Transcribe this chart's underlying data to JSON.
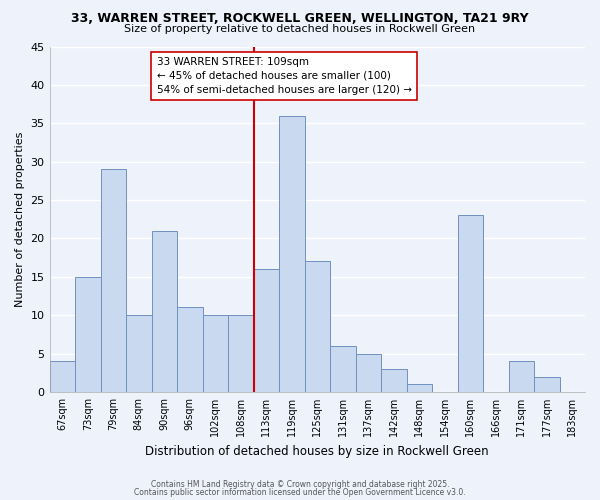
{
  "title": "33, WARREN STREET, ROCKWELL GREEN, WELLINGTON, TA21 9RY",
  "subtitle": "Size of property relative to detached houses in Rockwell Green",
  "xlabel": "Distribution of detached houses by size in Rockwell Green",
  "ylabel": "Number of detached properties",
  "bins": [
    "67sqm",
    "73sqm",
    "79sqm",
    "84sqm",
    "90sqm",
    "96sqm",
    "102sqm",
    "108sqm",
    "113sqm",
    "119sqm",
    "125sqm",
    "131sqm",
    "137sqm",
    "142sqm",
    "148sqm",
    "154sqm",
    "160sqm",
    "166sqm",
    "171sqm",
    "177sqm",
    "183sqm"
  ],
  "values": [
    4,
    15,
    29,
    10,
    21,
    11,
    10,
    10,
    16,
    36,
    17,
    6,
    5,
    3,
    1,
    0,
    23,
    0,
    4,
    2,
    0
  ],
  "bar_color": "#c9d9f0",
  "bar_edge_color": "#7090c0",
  "background_color": "#eef2fb",
  "grid_color": "#ffffff",
  "vline_color": "#cc0000",
  "annotation_title": "33 WARREN STREET: 109sqm",
  "annotation_line1": "← 45% of detached houses are smaller (100)",
  "annotation_line2": "54% of semi-detached houses are larger (120) →",
  "annotation_box_color": "#ffffff",
  "annotation_box_edge": "#cc0000",
  "ylim": [
    0,
    45
  ],
  "yticks": [
    0,
    5,
    10,
    15,
    20,
    25,
    30,
    35,
    40,
    45
  ],
  "footnote1": "Contains HM Land Registry data © Crown copyright and database right 2025.",
  "footnote2": "Contains public sector information licensed under the Open Government Licence v3.0."
}
